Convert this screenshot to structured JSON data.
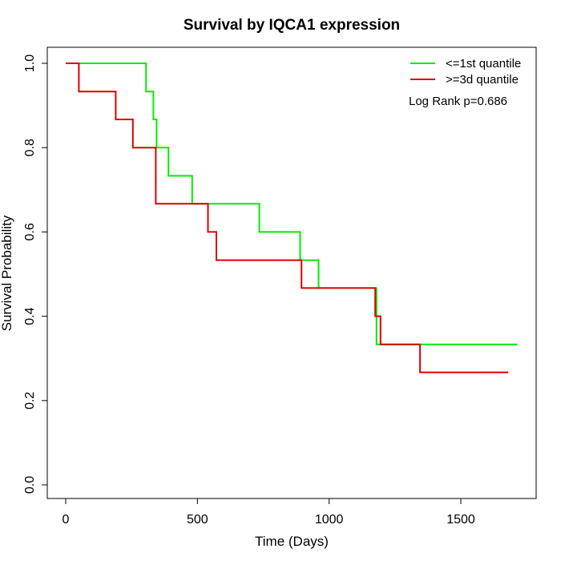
{
  "chart_data": {
    "type": "line",
    "title": "Survival by IQCA1 expression",
    "xlabel": "Time (Days)",
    "ylabel": "Survival Probability",
    "xlim": [
      0,
      1750
    ],
    "ylim": [
      0,
      1.0
    ],
    "x_ticks": [
      0,
      500,
      1000,
      1500
    ],
    "y_ticks": [
      0.0,
      0.2,
      0.4,
      0.6,
      0.8,
      1.0
    ],
    "x_tick_labels": [
      "0",
      "500",
      "1000",
      "1500"
    ],
    "y_tick_labels": [
      "0.0",
      "0.2",
      "0.4",
      "0.6",
      "0.8",
      "1.0"
    ],
    "grid": false,
    "legend": "top-right",
    "annotation": "Log Rank p=0.686",
    "series": [
      {
        "name": "<=1st quantile",
        "color": "#00ee00",
        "steps": [
          [
            0,
            1.0
          ],
          [
            305,
            0.933
          ],
          [
            333,
            0.867
          ],
          [
            345,
            0.8
          ],
          [
            390,
            0.733
          ],
          [
            480,
            0.667
          ],
          [
            735,
            0.6
          ],
          [
            890,
            0.533
          ],
          [
            960,
            0.467
          ],
          [
            1180,
            0.333
          ],
          [
            1715,
            0.333
          ]
        ]
      },
      {
        "name": ">=3d quantile",
        "color": "#dd0000",
        "steps": [
          [
            0,
            1.0
          ],
          [
            50,
            0.933
          ],
          [
            190,
            0.867
          ],
          [
            255,
            0.8
          ],
          [
            342,
            0.667
          ],
          [
            540,
            0.6
          ],
          [
            572,
            0.533
          ],
          [
            895,
            0.467
          ],
          [
            1175,
            0.4
          ],
          [
            1195,
            0.333
          ],
          [
            1345,
            0.267
          ],
          [
            1680,
            0.267
          ]
        ]
      }
    ]
  }
}
